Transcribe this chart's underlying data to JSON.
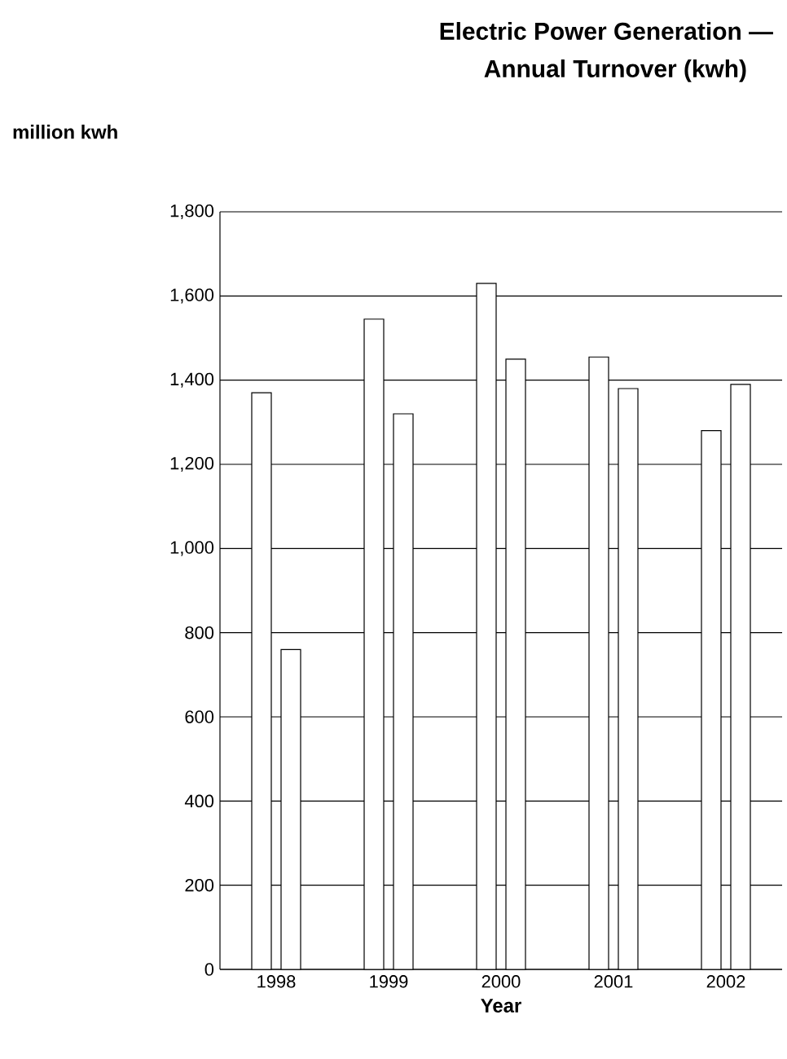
{
  "chart_data": {
    "type": "bar",
    "title": "Electric Power Generation —",
    "subtitle": "Annual Turnover (kwh)",
    "xlabel": "Year",
    "ylabel": "million kwh",
    "categories": [
      "1998",
      "1999",
      "2000",
      "2001",
      "2002"
    ],
    "series": [
      {
        "color": "#ffffff",
        "values": [
          1370,
          1545,
          1630,
          1455,
          1280
        ]
      },
      {
        "color": "#ffffff",
        "values": [
          760,
          1320,
          1450,
          1380,
          1390
        ]
      }
    ],
    "ylim": [
      0,
      1800
    ],
    "yticks": [
      {
        "value": 0,
        "label": "0"
      },
      {
        "value": 200,
        "label": "200"
      },
      {
        "value": 400,
        "label": "400"
      },
      {
        "value": 600,
        "label": "600"
      },
      {
        "value": 800,
        "label": "800"
      },
      {
        "value": 1000,
        "label": "1,000"
      },
      {
        "value": 1200,
        "label": "1,200"
      },
      {
        "value": 1400,
        "label": "1,400"
      },
      {
        "value": 1600,
        "label": "1,600"
      },
      {
        "value": 1800,
        "label": "1,800"
      }
    ],
    "grid": "y"
  }
}
